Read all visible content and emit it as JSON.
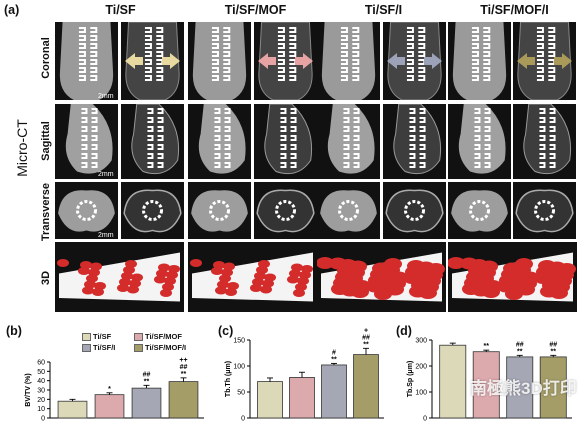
{
  "panel_a": {
    "label": "(a)",
    "side_label": "Micro-CT",
    "groups": [
      "Ti/SF",
      "Ti/SF/MOF",
      "Ti/SF/I",
      "Ti/SF/MOF/I"
    ],
    "rows": [
      "Coronal",
      "Sagittal",
      "Transverse",
      "3D"
    ],
    "scale_bar": "2mm",
    "arrow_colors": [
      "#e8d9a0",
      "#e7a3a3",
      "#9ca3b8",
      "#a99a5a"
    ]
  },
  "legend": {
    "items": [
      {
        "label": "Ti/SF",
        "color": "#dcd9b9"
      },
      {
        "label": "Ti/SF/MOF",
        "color": "#dca9ad"
      },
      {
        "label": "Ti/SF/I",
        "color": "#a5a7b5"
      },
      {
        "label": "Ti/SF/MOF/I",
        "color": "#a49d68"
      }
    ]
  },
  "chart_data": [
    {
      "panel": "(b)",
      "type": "bar",
      "categories": [
        "Ti/SF",
        "Ti/SF/MOF",
        "Ti/SF/I",
        "Ti/SF/MOF/I"
      ],
      "values": [
        18,
        25,
        32,
        39
      ],
      "errors": [
        2,
        2,
        3,
        4
      ],
      "annotations": [
        "",
        "*",
        "##\n**",
        "++\n##\n**"
      ],
      "ylabel": "BV/TV (%)",
      "ylim": [
        0,
        60
      ],
      "yticks": [
        0,
        10,
        20,
        30,
        40,
        50,
        60
      ],
      "colors": [
        "#dcd9b9",
        "#dca9ad",
        "#a5a7b5",
        "#a49d68"
      ]
    },
    {
      "panel": "(c)",
      "type": "bar",
      "categories": [
        "Ti/SF",
        "Ti/SF/MOF",
        "Ti/SF/I",
        "Ti/SF/MOF/I"
      ],
      "values": [
        70,
        78,
        102,
        122
      ],
      "errors": [
        7,
        10,
        3,
        12
      ],
      "annotations": [
        "",
        "",
        "#\n**",
        "+\n##\n**"
      ],
      "ylabel": "Tb.Th (μm)",
      "ylim": [
        0,
        150
      ],
      "yticks": [
        0,
        50,
        100,
        150
      ],
      "colors": [
        "#dcd9b9",
        "#dca9ad",
        "#a5a7b5",
        "#a49d68"
      ]
    },
    {
      "panel": "(d)",
      "type": "bar",
      "categories": [
        "Ti/SF",
        "Ti/SF/MOF",
        "Ti/SF/I",
        "Ti/SF/MOF/I"
      ],
      "values": [
        280,
        255,
        235,
        235
      ],
      "errors": [
        8,
        6,
        6,
        6
      ],
      "annotations": [
        "",
        "**",
        "##\n**",
        "##\n**"
      ],
      "ylabel": "Tb.Sp (μm)",
      "ylim": [
        0,
        300
      ],
      "yticks": [
        0,
        100,
        200,
        300
      ],
      "colors": [
        "#dcd9b9",
        "#dca9ad",
        "#a5a7b5",
        "#a49d68"
      ]
    }
  ],
  "watermark": "南極熊3D打印"
}
